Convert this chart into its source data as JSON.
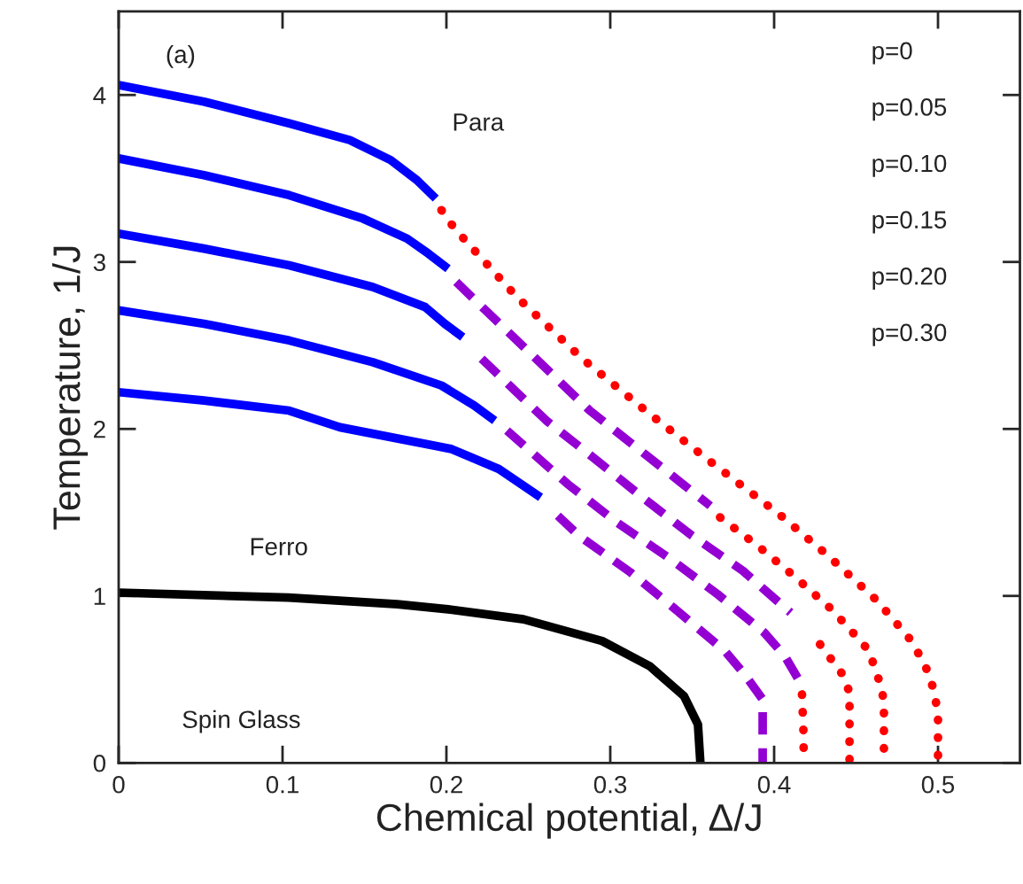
{
  "chart_data": {
    "type": "line",
    "xlabel": "Chemical potential, Δ/J",
    "ylabel": "Temperature, 1/J",
    "xlim": [
      0,
      0.55
    ],
    "ylim": [
      0,
      4.5
    ],
    "xticks": [
      0,
      0.1,
      0.2,
      0.3,
      0.4,
      0.5
    ],
    "yticks": [
      0,
      1,
      2,
      3,
      4
    ],
    "grid": false,
    "legend": false,
    "marker": "none",
    "annotations": [
      "(a)",
      "Para",
      "Ferro",
      "Spin Glass",
      "p=0",
      "p=0.05",
      "p=0.10",
      "p=0.15",
      "p=0.20",
      "p=0.30"
    ],
    "series": [
      {
        "color": "#0000ff",
        "line_style": "solid",
        "x": [
          0,
          0.052,
          0.104,
          0.141,
          0.166,
          0.182,
          0.1935
        ],
        "values": [
          4.06,
          3.96,
          3.83,
          3.73,
          3.61,
          3.49,
          3.38
        ]
      },
      {
        "color": "#0000ff",
        "line_style": "solid",
        "x": [
          0,
          0.052,
          0.104,
          0.149,
          0.176,
          0.189,
          0.201
        ],
        "values": [
          3.62,
          3.52,
          3.4,
          3.26,
          3.14,
          3.05,
          2.96
        ]
      },
      {
        "color": "#0000ff",
        "line_style": "solid",
        "x": [
          0,
          0.052,
          0.104,
          0.155,
          0.187,
          0.199,
          0.21
        ],
        "values": [
          3.17,
          3.08,
          2.98,
          2.85,
          2.73,
          2.63,
          2.55
        ]
      },
      {
        "color": "#0000ff",
        "line_style": "solid",
        "x": [
          0,
          0.052,
          0.104,
          0.155,
          0.197,
          0.217,
          0.2295
        ],
        "values": [
          2.71,
          2.63,
          2.53,
          2.4,
          2.26,
          2.14,
          2.05
        ]
      },
      {
        "color": "#0000ff",
        "line_style": "solid",
        "x": [
          0,
          0.052,
          0.104,
          0.135,
          0.203,
          0.232,
          0.2575
        ],
        "values": [
          2.22,
          2.17,
          2.11,
          2.01,
          1.88,
          1.76,
          1.59
        ]
      },
      {
        "color": "#ff0000",
        "line_style": "dotted",
        "x": [
          0.197,
          0.205,
          0.243,
          0.283,
          0.324,
          0.363,
          0.403,
          0.433,
          0.463,
          0.483,
          0.492,
          0.497,
          0.5,
          0.5
        ],
        "values": [
          3.31,
          3.2,
          2.79,
          2.42,
          2.09,
          1.79,
          1.49,
          1.24,
          0.97,
          0.74,
          0.59,
          0.45,
          0.3,
          0
        ]
      },
      {
        "color": "#9400d3",
        "line_style": "dashed",
        "x": [
          0.206,
          0.2875,
          0.361
        ],
        "values": [
          2.88,
          2.11,
          1.54
        ]
      },
      {
        "color": "#ff0000",
        "line_style": "dotted",
        "x": [
          0.367,
          0.39,
          0.412,
          0.435,
          0.449,
          0.458,
          0.462,
          0.466,
          0.467,
          0.467
        ],
        "values": [
          1.47,
          1.3,
          1.12,
          0.92,
          0.77,
          0.67,
          0.55,
          0.44,
          0.31,
          0
        ]
      },
      {
        "color": "#9400d3",
        "line_style": "dashed",
        "x": [
          0.2215,
          0.261,
          0.292,
          0.321,
          0.35,
          0.381,
          0.41
        ],
        "values": [
          2.42,
          2.05,
          1.81,
          1.58,
          1.36,
          1.15,
          0.9
        ]
      },
      {
        "color": "#ff0000",
        "line_style": "dotted",
        "x": [
          0.428,
          0.4425,
          0.446,
          0.446
        ],
        "values": [
          0.71,
          0.52,
          0.42,
          0
        ]
      },
      {
        "color": "#9400d3",
        "line_style": "dashed",
        "x": [
          0.237,
          0.274,
          0.304,
          0.3355,
          0.3655,
          0.394,
          0.4065,
          0.416
        ],
        "values": [
          1.99,
          1.67,
          1.44,
          1.23,
          1.01,
          0.78,
          0.64,
          0.48
        ]
      },
      {
        "color": "#ff0000",
        "line_style": "dotted",
        "x": [
          0.417,
          0.418,
          0.418
        ],
        "values": [
          0.41,
          0.16,
          0
        ]
      },
      {
        "color": "#9400d3",
        "line_style": "dashed",
        "x": [
          0.268,
          0.281,
          0.3125,
          0.341,
          0.37,
          0.382,
          0.393,
          0.393
        ],
        "values": [
          1.48,
          1.36,
          1.14,
          0.91,
          0.67,
          0.53,
          0.38,
          0
        ]
      },
      {
        "color": "#000000",
        "line_style": "solid",
        "x": [
          0,
          0.1035,
          0.17,
          0.201,
          0.247,
          0.295,
          0.324,
          0.345,
          0.3535,
          0.355
        ],
        "values": [
          1.02,
          0.99,
          0.95,
          0.92,
          0.86,
          0.73,
          0.58,
          0.4,
          0.23,
          0
        ]
      }
    ]
  }
}
